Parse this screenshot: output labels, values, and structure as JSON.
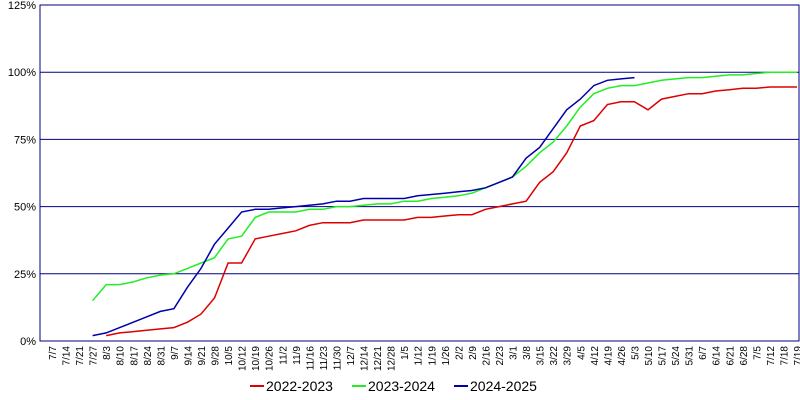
{
  "chart_data": {
    "type": "line",
    "categories": [
      "7/7",
      "7/14",
      "7/21",
      "7/27",
      "8/3",
      "8/10",
      "8/17",
      "8/24",
      "8/31",
      "9/7",
      "9/14",
      "9/21",
      "9/28",
      "10/5",
      "10/12",
      "10/19",
      "10/26",
      "11/2",
      "11/9",
      "11/16",
      "11/23",
      "11/30",
      "12/7",
      "12/14",
      "12/21",
      "12/28",
      "1/5",
      "1/12",
      "1/19",
      "1/26",
      "2/2",
      "2/9",
      "2/16",
      "2/23",
      "3/1",
      "3/8",
      "3/15",
      "3/22",
      "3/29",
      "4/5",
      "4/12",
      "4/19",
      "4/26",
      "5/3",
      "5/10",
      "5/17",
      "5/24",
      "5/31",
      "6/7",
      "6/14",
      "6/21",
      "6/28",
      "7/5",
      "7/12",
      "7/18",
      "7/19"
    ],
    "series": [
      {
        "name": "2022-2023",
        "color": "#dd0000",
        "values": [
          null,
          null,
          null,
          null,
          2,
          3,
          3.5,
          4,
          4.5,
          5,
          7,
          10,
          16,
          29,
          29,
          38,
          39,
          40,
          41,
          43,
          44,
          44,
          44,
          45,
          45,
          45,
          45,
          46,
          46,
          46.5,
          47,
          47,
          49,
          50,
          51,
          52,
          59,
          63,
          70,
          80,
          82,
          88,
          89,
          89,
          86,
          90,
          91,
          92,
          92,
          93,
          93.5,
          94,
          94,
          94.5,
          94.5,
          94.5
        ]
      },
      {
        "name": "2023-2024",
        "color": "#22ee22",
        "values": [
          null,
          null,
          null,
          15,
          21,
          21,
          22,
          23.5,
          24.5,
          25,
          27,
          29,
          31,
          38,
          39,
          46,
          48,
          48,
          48,
          49,
          49,
          50,
          50,
          50.5,
          51,
          51,
          52,
          52,
          53,
          53.5,
          54,
          55,
          57,
          59,
          61,
          65,
          70,
          74,
          80,
          87,
          92,
          94,
          95,
          95,
          96,
          97,
          97.5,
          98,
          98,
          98.5,
          99,
          99,
          99.5,
          100,
          100,
          100
        ]
      },
      {
        "name": "2024-2025",
        "color": "#0000aa",
        "values": [
          null,
          null,
          null,
          2,
          3,
          5,
          7,
          9,
          11,
          12,
          20,
          27,
          36,
          42,
          48,
          49,
          49,
          49.5,
          50,
          50.5,
          51,
          52,
          52,
          53,
          53,
          53,
          53,
          54,
          54.5,
          55,
          55.5,
          56,
          57,
          59,
          61,
          68,
          72,
          79,
          86,
          90,
          95,
          97,
          97.5,
          98,
          null,
          null,
          null,
          null,
          null,
          null,
          null,
          null,
          null,
          null,
          null,
          null
        ]
      }
    ],
    "ylim": [
      0,
      125
    ],
    "yticks": [
      {
        "value": 0,
        "label": "0%"
      },
      {
        "value": 25,
        "label": "25%"
      },
      {
        "value": 50,
        "label": "50%"
      },
      {
        "value": 75,
        "label": "75%"
      },
      {
        "value": 100,
        "label": "100%"
      },
      {
        "value": 125,
        "label": "125%"
      }
    ],
    "grid": true
  }
}
